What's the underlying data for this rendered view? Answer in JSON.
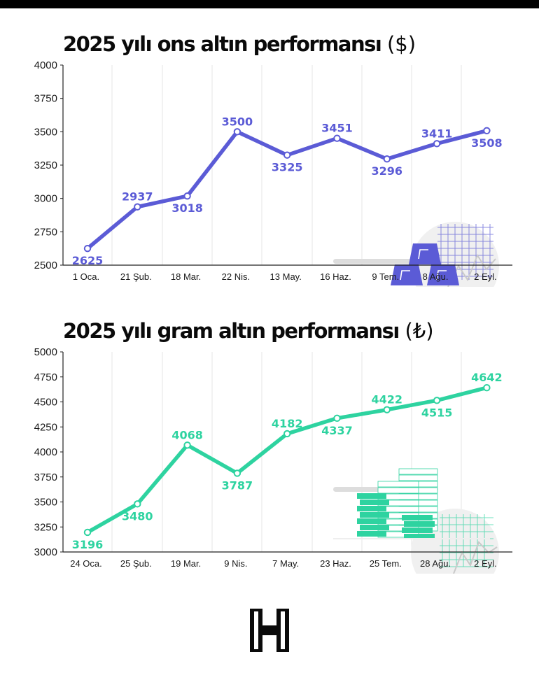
{
  "colors": {
    "usd_line": "#5b5bd6",
    "try_line": "#2ed3a0",
    "grid": "#e6e6e6",
    "axis": "#222222",
    "logo": "#0a0a0a"
  },
  "chart_data": [
    {
      "id": "usd",
      "type": "line",
      "title": "2025 yılı ons altın performansı",
      "unit": "($)",
      "categories": [
        "1 Oca.",
        "21 Şub.",
        "18 Mar.",
        "22 Nis.",
        "13 May.",
        "16 Haz.",
        "9 Tem.",
        "8 Ağu.",
        "2 Eyl."
      ],
      "values": [
        2625,
        2937,
        3018,
        3500,
        3325,
        3451,
        3296,
        3411,
        3508
      ],
      "label_placement": [
        "below",
        "above",
        "below",
        "above",
        "below",
        "above",
        "below",
        "above",
        "below"
      ],
      "ylim": [
        2500,
        4000
      ],
      "yticks": [
        2500,
        2750,
        3000,
        3250,
        3500,
        3750,
        4000
      ],
      "xlabel": "",
      "ylabel": "",
      "grid": "vertical",
      "illustration": "gold-bars"
    },
    {
      "id": "try",
      "type": "line",
      "title": "2025 yılı gram altın performansı",
      "unit": "(₺)",
      "categories": [
        "24 Oca.",
        "25 Şub.",
        "19 Mar.",
        "9 Nis.",
        "7 May.",
        "23 Haz.",
        "25 Tem.",
        "28 Ağu.",
        "2 Eyl."
      ],
      "values": [
        3196,
        3480,
        4068,
        3787,
        4182,
        4337,
        4422,
        4515,
        4642
      ],
      "label_placement": [
        "below",
        "below",
        "above",
        "below",
        "above",
        "below",
        "above",
        "below",
        "above"
      ],
      "ylim": [
        3000,
        5000
      ],
      "yticks": [
        3000,
        3250,
        3500,
        3750,
        4000,
        4250,
        4500,
        4750,
        5000
      ],
      "xlabel": "",
      "ylabel": "",
      "grid": "vertical",
      "illustration": "banknote-stacks"
    }
  ],
  "logo": {
    "icon": "h-logo-icon"
  }
}
